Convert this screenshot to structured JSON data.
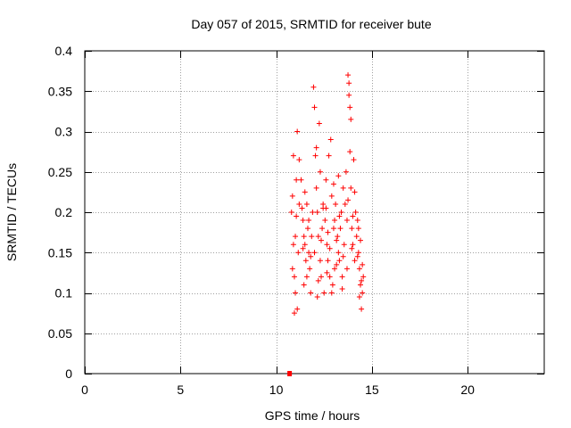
{
  "chart_data": {
    "type": "scatter",
    "title": "Day 057 of 2015, SRMTID for receiver bute",
    "xlabel": "GPS time / hours",
    "ylabel": "SRMTID / TECUs",
    "xlim": [
      0,
      24
    ],
    "ylim": [
      0,
      0.4
    ],
    "xticks": [
      0,
      5,
      10,
      15,
      20
    ],
    "yticks": [
      0,
      0.05,
      0.1,
      0.15,
      0.2,
      0.25,
      0.3,
      0.35,
      0.4
    ],
    "ytick_labels": [
      "0",
      "0.05",
      "0.1",
      "0.15",
      "0.2",
      "0.25",
      "0.3",
      "0.35",
      "0.4"
    ],
    "grid": true,
    "marker": "+",
    "color": "#ff0000",
    "zero_value_markers": [
      {
        "x": 10.7,
        "y": 0
      }
    ],
    "series": [
      {
        "name": "SRMTID",
        "points": [
          [
            10.8,
            0.2
          ],
          [
            10.85,
            0.22
          ],
          [
            10.9,
            0.27
          ],
          [
            10.9,
            0.16
          ],
          [
            10.95,
            0.12
          ],
          [
            11.0,
            0.1
          ],
          [
            11.0,
            0.17
          ],
          [
            11.05,
            0.24
          ],
          [
            11.1,
            0.3
          ],
          [
            11.1,
            0.08
          ],
          [
            11.15,
            0.15
          ],
          [
            11.2,
            0.21
          ],
          [
            11.2,
            0.265
          ],
          [
            10.85,
            0.13
          ],
          [
            10.95,
            0.075
          ],
          [
            11.05,
            0.195
          ],
          [
            11.3,
            0.24
          ],
          [
            11.35,
            0.205
          ],
          [
            11.4,
            0.19
          ],
          [
            11.45,
            0.17
          ],
          [
            11.5,
            0.16
          ],
          [
            11.55,
            0.14
          ],
          [
            11.6,
            0.12
          ],
          [
            11.6,
            0.21
          ],
          [
            11.65,
            0.18
          ],
          [
            11.7,
            0.15
          ],
          [
            11.75,
            0.13
          ],
          [
            11.8,
            0.1
          ],
          [
            11.85,
            0.17
          ],
          [
            11.9,
            0.2
          ],
          [
            11.4,
            0.155
          ],
          [
            11.5,
            0.225
          ],
          [
            11.7,
            0.19
          ],
          [
            11.8,
            0.145
          ],
          [
            11.45,
            0.11
          ],
          [
            11.95,
            0.355
          ],
          [
            12.0,
            0.33
          ],
          [
            12.05,
            0.27
          ],
          [
            12.1,
            0.23
          ],
          [
            12.15,
            0.2
          ],
          [
            12.2,
            0.17
          ],
          [
            12.25,
            0.31
          ],
          [
            12.3,
            0.25
          ],
          [
            12.3,
            0.14
          ],
          [
            12.35,
            0.12
          ],
          [
            12.4,
            0.18
          ],
          [
            12.45,
            0.21
          ],
          [
            12.5,
            0.1
          ],
          [
            12.0,
            0.15
          ],
          [
            12.1,
            0.28
          ],
          [
            12.2,
            0.115
          ],
          [
            12.35,
            0.165
          ],
          [
            12.45,
            0.205
          ],
          [
            12.15,
            0.095
          ],
          [
            12.55,
            0.19
          ],
          [
            12.6,
            0.24
          ],
          [
            12.65,
            0.16
          ],
          [
            12.7,
            0.14
          ],
          [
            12.75,
            0.27
          ],
          [
            12.8,
            0.12
          ],
          [
            12.85,
            0.29
          ],
          [
            12.9,
            0.22
          ],
          [
            12.95,
            0.11
          ],
          [
            13.0,
            0.18
          ],
          [
            13.05,
            0.13
          ],
          [
            12.6,
            0.205
          ],
          [
            12.7,
            0.175
          ],
          [
            12.8,
            0.155
          ],
          [
            12.9,
            0.1
          ],
          [
            13.0,
            0.235
          ],
          [
            12.65,
            0.125
          ],
          [
            13.05,
            0.19
          ],
          [
            13.1,
            0.21
          ],
          [
            13.15,
            0.165
          ],
          [
            13.2,
            0.17
          ],
          [
            13.25,
            0.15
          ],
          [
            13.3,
            0.14
          ],
          [
            13.35,
            0.18
          ],
          [
            13.4,
            0.2
          ],
          [
            13.45,
            0.12
          ],
          [
            13.5,
            0.23
          ],
          [
            13.55,
            0.16
          ],
          [
            13.15,
            0.135
          ],
          [
            13.3,
            0.195
          ],
          [
            13.45,
            0.105
          ],
          [
            13.25,
            0.245
          ],
          [
            13.5,
            0.145
          ],
          [
            13.6,
            0.21
          ],
          [
            13.65,
            0.25
          ],
          [
            13.7,
            0.19
          ],
          [
            13.75,
            0.37
          ],
          [
            13.8,
            0.36
          ],
          [
            13.8,
            0.345
          ],
          [
            13.85,
            0.33
          ],
          [
            13.9,
            0.315
          ],
          [
            13.85,
            0.275
          ],
          [
            13.9,
            0.23
          ],
          [
            13.95,
            0.18
          ],
          [
            14.0,
            0.16
          ],
          [
            14.05,
            0.265
          ],
          [
            14.1,
            0.14
          ],
          [
            14.15,
            0.2
          ],
          [
            14.2,
            0.17
          ],
          [
            13.7,
            0.13
          ],
          [
            13.75,
            0.215
          ],
          [
            14.0,
            0.195
          ],
          [
            14.1,
            0.225
          ],
          [
            13.95,
            0.155
          ],
          [
            14.25,
            0.19
          ],
          [
            14.3,
            0.15
          ],
          [
            14.35,
            0.13
          ],
          [
            14.4,
            0.11
          ],
          [
            14.45,
            0.08
          ],
          [
            14.5,
            0.1
          ],
          [
            14.55,
            0.12
          ],
          [
            14.3,
            0.18
          ],
          [
            14.4,
            0.165
          ],
          [
            14.5,
            0.135
          ],
          [
            14.35,
            0.095
          ],
          [
            14.45,
            0.115
          ],
          [
            14.25,
            0.145
          ]
        ]
      }
    ]
  }
}
